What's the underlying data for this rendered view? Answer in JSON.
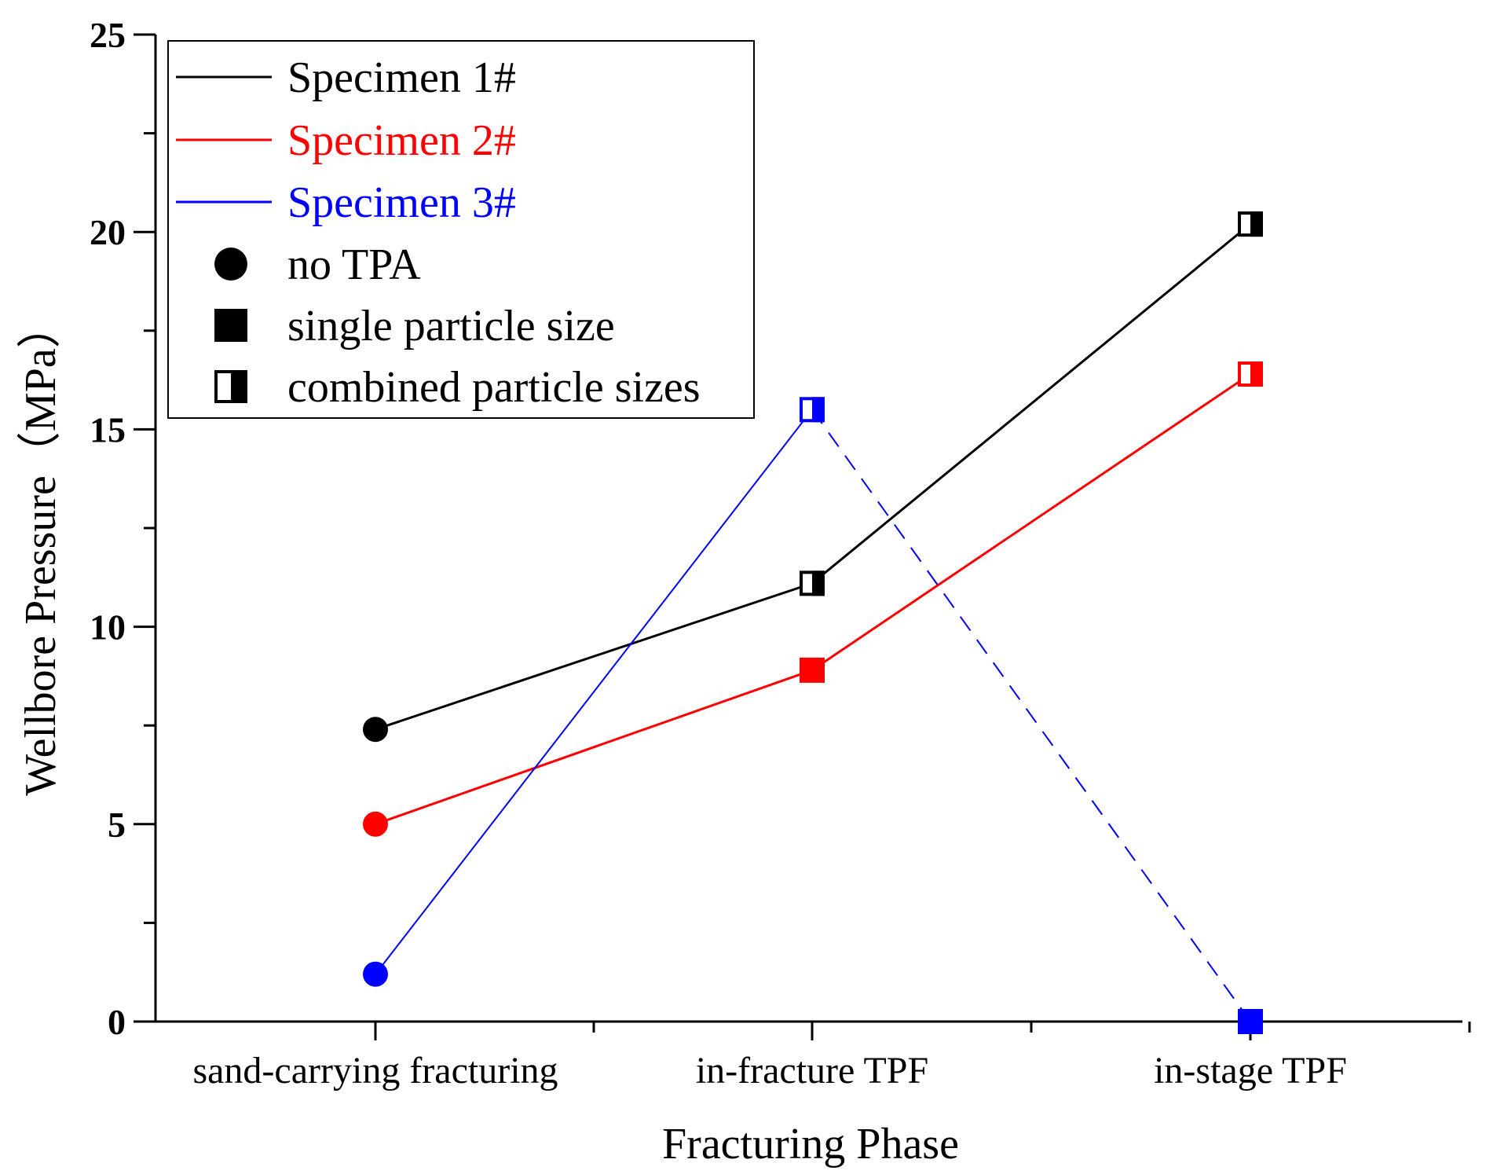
{
  "chart_data": {
    "type": "line",
    "title": "",
    "xlabel": "Fracturing Phase",
    "ylabel": "Wellbore Pressure（MPa）",
    "ylim": [
      0,
      25
    ],
    "yticks": [
      0,
      5,
      10,
      15,
      20,
      25
    ],
    "categories": [
      "sand-carrying fracturing",
      "in-fracture TPF",
      "in-stage TPF"
    ],
    "series": [
      {
        "name": "Specimen 1#",
        "color": "#000000",
        "values": [
          7.4,
          11.1,
          20.2
        ],
        "markers": [
          "circle",
          "half-square",
          "half-square"
        ],
        "dashed_segments": []
      },
      {
        "name": "Specimen 2#",
        "color": "#ff0000",
        "values": [
          5.0,
          8.9,
          16.4
        ],
        "markers": [
          "circle",
          "square",
          "half-square"
        ],
        "dashed_segments": []
      },
      {
        "name": "Specimen 3#",
        "color": "#0000ff",
        "values": [
          1.2,
          15.5,
          0.0
        ],
        "markers": [
          "circle",
          "half-square",
          "square"
        ],
        "dashed_segments": [
          1
        ]
      }
    ],
    "legend": {
      "placement": "top-left",
      "line_entries": [
        {
          "label": "Specimen 1#",
          "color": "#000000"
        },
        {
          "label": "Specimen 2#",
          "color": "#ff0000"
        },
        {
          "label": "Specimen 3#",
          "color": "#0000ff"
        }
      ],
      "marker_entries": [
        {
          "label": "no TPA",
          "marker": "circle"
        },
        {
          "label": "single particle size",
          "marker": "square"
        },
        {
          "label": "combined particle sizes",
          "marker": "half-square"
        }
      ]
    }
  }
}
